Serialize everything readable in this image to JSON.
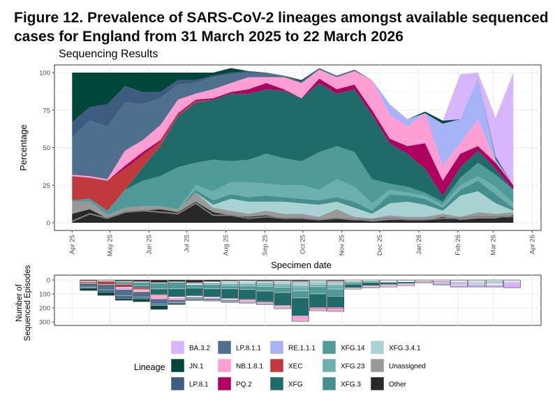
{
  "figure": {
    "title": "Figure 12. Prevalence of SARS-CoV-2 lineages amongst available sequenced cases for England from 31 March 2025 to 22 March 2026"
  },
  "chart_data": [
    {
      "type": "area",
      "title": "Sequencing Results",
      "xlabel": "Specimen date",
      "ylabel": "Percentage",
      "ylim": [
        0,
        100
      ],
      "yticks": [
        0,
        25,
        50,
        75,
        100
      ],
      "xlim": [
        "2025-03-18",
        "2026-04-08"
      ],
      "xticks": [
        "Apr 25",
        "May 25",
        "Jun 25",
        "Jul 25",
        "Aug 25",
        "Sep 25",
        "Oct 25",
        "Nov 25",
        "Dec 25",
        "Jan 26",
        "Feb 26",
        "Mar 26",
        "Apr 26"
      ],
      "xtick_dates": [
        "2025-04-01",
        "2025-05-01",
        "2025-06-01",
        "2025-07-01",
        "2025-08-01",
        "2025-09-01",
        "2025-10-01",
        "2025-11-01",
        "2025-12-01",
        "2026-01-01",
        "2026-02-01",
        "2026-03-01",
        "2026-04-01"
      ],
      "grid": true,
      "dates": [
        "2025-04-01",
        "2025-04-15",
        "2025-04-29",
        "2025-05-13",
        "2025-05-27",
        "2025-06-10",
        "2025-06-24",
        "2025-07-08",
        "2025-07-22",
        "2025-08-05",
        "2025-08-19",
        "2025-09-02",
        "2025-09-16",
        "2025-09-30",
        "2025-10-14",
        "2025-10-28",
        "2025-11-11",
        "2025-11-25",
        "2025-12-09",
        "2025-12-23",
        "2026-01-06",
        "2026-01-20",
        "2026-02-03",
        "2026-02-17",
        "2026-03-03",
        "2026-03-17"
      ],
      "series": [
        {
          "name": "Other",
          "color": "#282828",
          "values": [
            6,
            9,
            3,
            7,
            8,
            9,
            7,
            14,
            7,
            5,
            4,
            5,
            3,
            3,
            2,
            3,
            2,
            1,
            2,
            2,
            2,
            4,
            2,
            3,
            3,
            5
          ]
        },
        {
          "name": "Unassigned",
          "color": "#999999",
          "values": [
            8,
            5,
            2,
            3,
            3,
            2,
            2,
            6,
            3,
            3,
            2,
            3,
            3,
            3,
            2,
            6,
            2,
            2,
            3,
            2,
            2,
            2,
            2,
            4,
            3,
            2
          ]
        },
        {
          "name": "XFG.3.4.1",
          "color": "#a9d3d2",
          "values": [
            0,
            0,
            0,
            0,
            0,
            0,
            0,
            0,
            2,
            8,
            8,
            6,
            8,
            7,
            8,
            5,
            6,
            3,
            8,
            10,
            8,
            2,
            14,
            14,
            7,
            1
          ]
        },
        {
          "name": "XFG.3",
          "color": "#45908e",
          "values": [
            0,
            0,
            0,
            0,
            0,
            0,
            0,
            2,
            3,
            3,
            3,
            4,
            3,
            3,
            3,
            3,
            4,
            2,
            6,
            4,
            4,
            2,
            4,
            7,
            6,
            2
          ]
        },
        {
          "name": "XFG.23",
          "color": "#6cb0ae",
          "values": [
            0,
            0,
            0,
            0,
            0,
            0,
            0,
            3,
            6,
            8,
            10,
            8,
            8,
            9,
            7,
            12,
            10,
            5,
            3,
            2,
            2,
            2,
            3,
            3,
            5,
            3
          ]
        },
        {
          "name": "XFG.14",
          "color": "#509a98",
          "values": [
            1,
            2,
            3,
            12,
            17,
            20,
            28,
            15,
            21,
            14,
            15,
            20,
            18,
            16,
            25,
            22,
            23,
            16,
            4,
            4,
            2,
            2,
            5,
            9,
            8,
            9
          ]
        },
        {
          "name": "XFG",
          "color": "#1e6b6a",
          "values": [
            0,
            0,
            0,
            0,
            9,
            20,
            34,
            40,
            40,
            45,
            44,
            43,
            45,
            42,
            46,
            35,
            42,
            43,
            27,
            22,
            16,
            4,
            7,
            8,
            4,
            0
          ]
        },
        {
          "name": "XEC",
          "color": "#c0393d",
          "values": [
            16,
            14,
            20,
            14,
            8,
            3,
            1,
            1,
            0,
            0,
            0,
            0,
            0,
            0,
            0,
            0,
            0,
            0,
            0,
            0,
            0,
            0,
            0,
            0,
            0,
            0
          ]
        },
        {
          "name": "PQ.2",
          "color": "#b0005f",
          "values": [
            0,
            0,
            0,
            2,
            2,
            1,
            1,
            1,
            1,
            1,
            3,
            4,
            1,
            0,
            3,
            3,
            3,
            3,
            3,
            5,
            17,
            10,
            9,
            3,
            4,
            3
          ]
        },
        {
          "name": "NB.1.8.1",
          "color": "#ff9ed2",
          "values": [
            1,
            1,
            1,
            10,
            8,
            10,
            9,
            4,
            6,
            6,
            8,
            4,
            8,
            10,
            6,
            8,
            9,
            20,
            16,
            13,
            20,
            10,
            7,
            18,
            0,
            0
          ]
        },
        {
          "name": "RE.1.1.1",
          "color": "#a6b3f6",
          "values": [
            0,
            0,
            0,
            0,
            0,
            0,
            0,
            0,
            0,
            0,
            0,
            0,
            0,
            0,
            0,
            0,
            0,
            0,
            7,
            5,
            0,
            28,
            16,
            28,
            2,
            0
          ]
        },
        {
          "name": "LP.8.1.1",
          "color": "#4f6f8f",
          "values": [
            25,
            37,
            35,
            32,
            24,
            18,
            10,
            7,
            8,
            6,
            3,
            3,
            1,
            1,
            1,
            1,
            1,
            0,
            0,
            0,
            0,
            0,
            0,
            0,
            1,
            0
          ]
        },
        {
          "name": "LP.8.1",
          "color": "#3d5c7f",
          "values": [
            10,
            9,
            15,
            11,
            8,
            4,
            3,
            2,
            1,
            1,
            1,
            0,
            0,
            0,
            0,
            0,
            0,
            0,
            0,
            0,
            0,
            0,
            0,
            0,
            0,
            0
          ]
        },
        {
          "name": "JN.1",
          "color": "#00473a",
          "values": [
            33,
            23,
            21,
            9,
            13,
            13,
            5,
            5,
            2,
            3,
            0,
            0,
            0,
            1,
            0,
            0,
            0,
            0,
            0,
            0,
            1,
            2,
            0,
            0,
            1,
            0
          ]
        },
        {
          "name": "BA.3.2",
          "color": "#d8b5ff",
          "values": [
            0,
            0,
            0,
            0,
            0,
            0,
            0,
            0,
            0,
            0,
            0,
            0,
            0,
            0,
            0,
            0,
            0,
            0,
            0,
            0,
            0,
            0,
            30,
            3,
            26,
            75
          ]
        }
      ],
      "trend_line": {
        "color": "#7f7f7f",
        "values": [
          1,
          6,
          3,
          7,
          8,
          7,
          6,
          13,
          5,
          5,
          3,
          4,
          3,
          3,
          2,
          3,
          2,
          2,
          3,
          2,
          2,
          3,
          3,
          4,
          4,
          4
        ]
      }
    },
    {
      "type": "bar",
      "xlabel": "",
      "ylabel": "Number of\nSequenced Episodes",
      "ylim": [
        0,
        300
      ],
      "yticks": [
        0,
        100,
        200,
        300
      ],
      "reversed": true,
      "grid": true,
      "weeks": [
        "2025-04-14",
        "2025-04-28",
        "2025-05-12",
        "2025-05-26",
        "2025-06-09",
        "2025-06-23",
        "2025-07-07",
        "2025-07-21",
        "2025-08-04",
        "2025-08-18",
        "2025-09-01",
        "2025-09-15",
        "2025-09-29",
        "2025-10-13",
        "2025-10-27",
        "2025-11-10",
        "2025-11-24",
        "2025-12-08",
        "2025-12-22",
        "2026-01-05",
        "2026-01-19",
        "2026-02-02",
        "2026-02-16",
        "2026-03-02",
        "2026-03-16"
      ],
      "totals": [
        75,
        110,
        145,
        155,
        210,
        175,
        145,
        150,
        160,
        165,
        175,
        205,
        295,
        220,
        225,
        65,
        55,
        50,
        40,
        20,
        35,
        50,
        50,
        50,
        55
      ]
    }
  ],
  "legend": {
    "title": "Lineage",
    "items": [
      {
        "label": "BA.3.2",
        "color": "#d8b5ff"
      },
      {
        "label": "JN.1",
        "color": "#00473a"
      },
      {
        "label": "LP.8.1",
        "color": "#3d5c7f"
      },
      {
        "label": "LP.8.1.1",
        "color": "#4f6f8f"
      },
      {
        "label": "NB.1.8.1",
        "color": "#ff9ed2"
      },
      {
        "label": "PQ.2",
        "color": "#b0005f"
      },
      {
        "label": "RE.1.1.1",
        "color": "#a6b3f6"
      },
      {
        "label": "XEC",
        "color": "#c0393d"
      },
      {
        "label": "XFG",
        "color": "#1e6b6a"
      },
      {
        "label": "XFG.14",
        "color": "#509a98"
      },
      {
        "label": "XFG.23",
        "color": "#6cb0ae"
      },
      {
        "label": "XFG.3",
        "color": "#45908e"
      },
      {
        "label": "XFG.3.4.1",
        "color": "#a9d3d2"
      },
      {
        "label": "Unassigned",
        "color": "#999999"
      },
      {
        "label": "Other",
        "color": "#282828"
      }
    ]
  }
}
